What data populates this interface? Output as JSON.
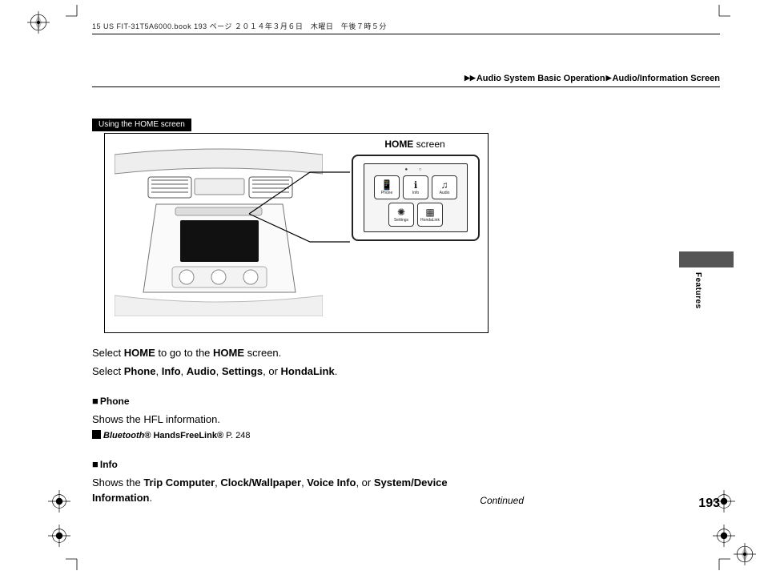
{
  "header_line": "15 US FIT-31T5A6000.book  193 ページ  ２０１４年３月６日　木曜日　午後７時５分",
  "breadcrumb": {
    "l1": "Audio System Basic Operation",
    "l2": "Audio/Information Screen"
  },
  "section_tag": "Using the HOME screen",
  "figure": {
    "screen_label_bold": "HOME",
    "screen_label_rest": " screen",
    "apps_row1": [
      {
        "glyph": "📱",
        "label": "Phone"
      },
      {
        "glyph": "ℹ",
        "label": "Info"
      },
      {
        "glyph": "♫",
        "label": "Audio"
      }
    ],
    "apps_row2": [
      {
        "glyph": "✺",
        "label": "Settings"
      },
      {
        "glyph": "▦",
        "label": "HondaLink"
      }
    ]
  },
  "body": {
    "p1_pre": "Select ",
    "p1_b1": "HOME",
    "p1_mid": " to go to the ",
    "p1_b2": "HOME",
    "p1_post": " screen.",
    "p2_pre": "Select ",
    "p2_items": [
      "Phone",
      "Info",
      "Audio",
      "Settings",
      "HondaLink"
    ],
    "sec1_title": "Phone",
    "sec1_body": "Shows the HFL information.",
    "sec1_xref_pre": "Bluetooth",
    "sec1_xref_mid": "® HandsFreeLink®",
    "sec1_xref_page": " P. 248",
    "sec2_title": "Info",
    "sec2_body_pre": "Shows the ",
    "sec2_items": [
      "Trip Computer",
      "Clock/Wallpaper",
      "Voice Info",
      "System/Device Information"
    ]
  },
  "continued": "Continued",
  "page_number": "193",
  "side_tab_label": "Features"
}
